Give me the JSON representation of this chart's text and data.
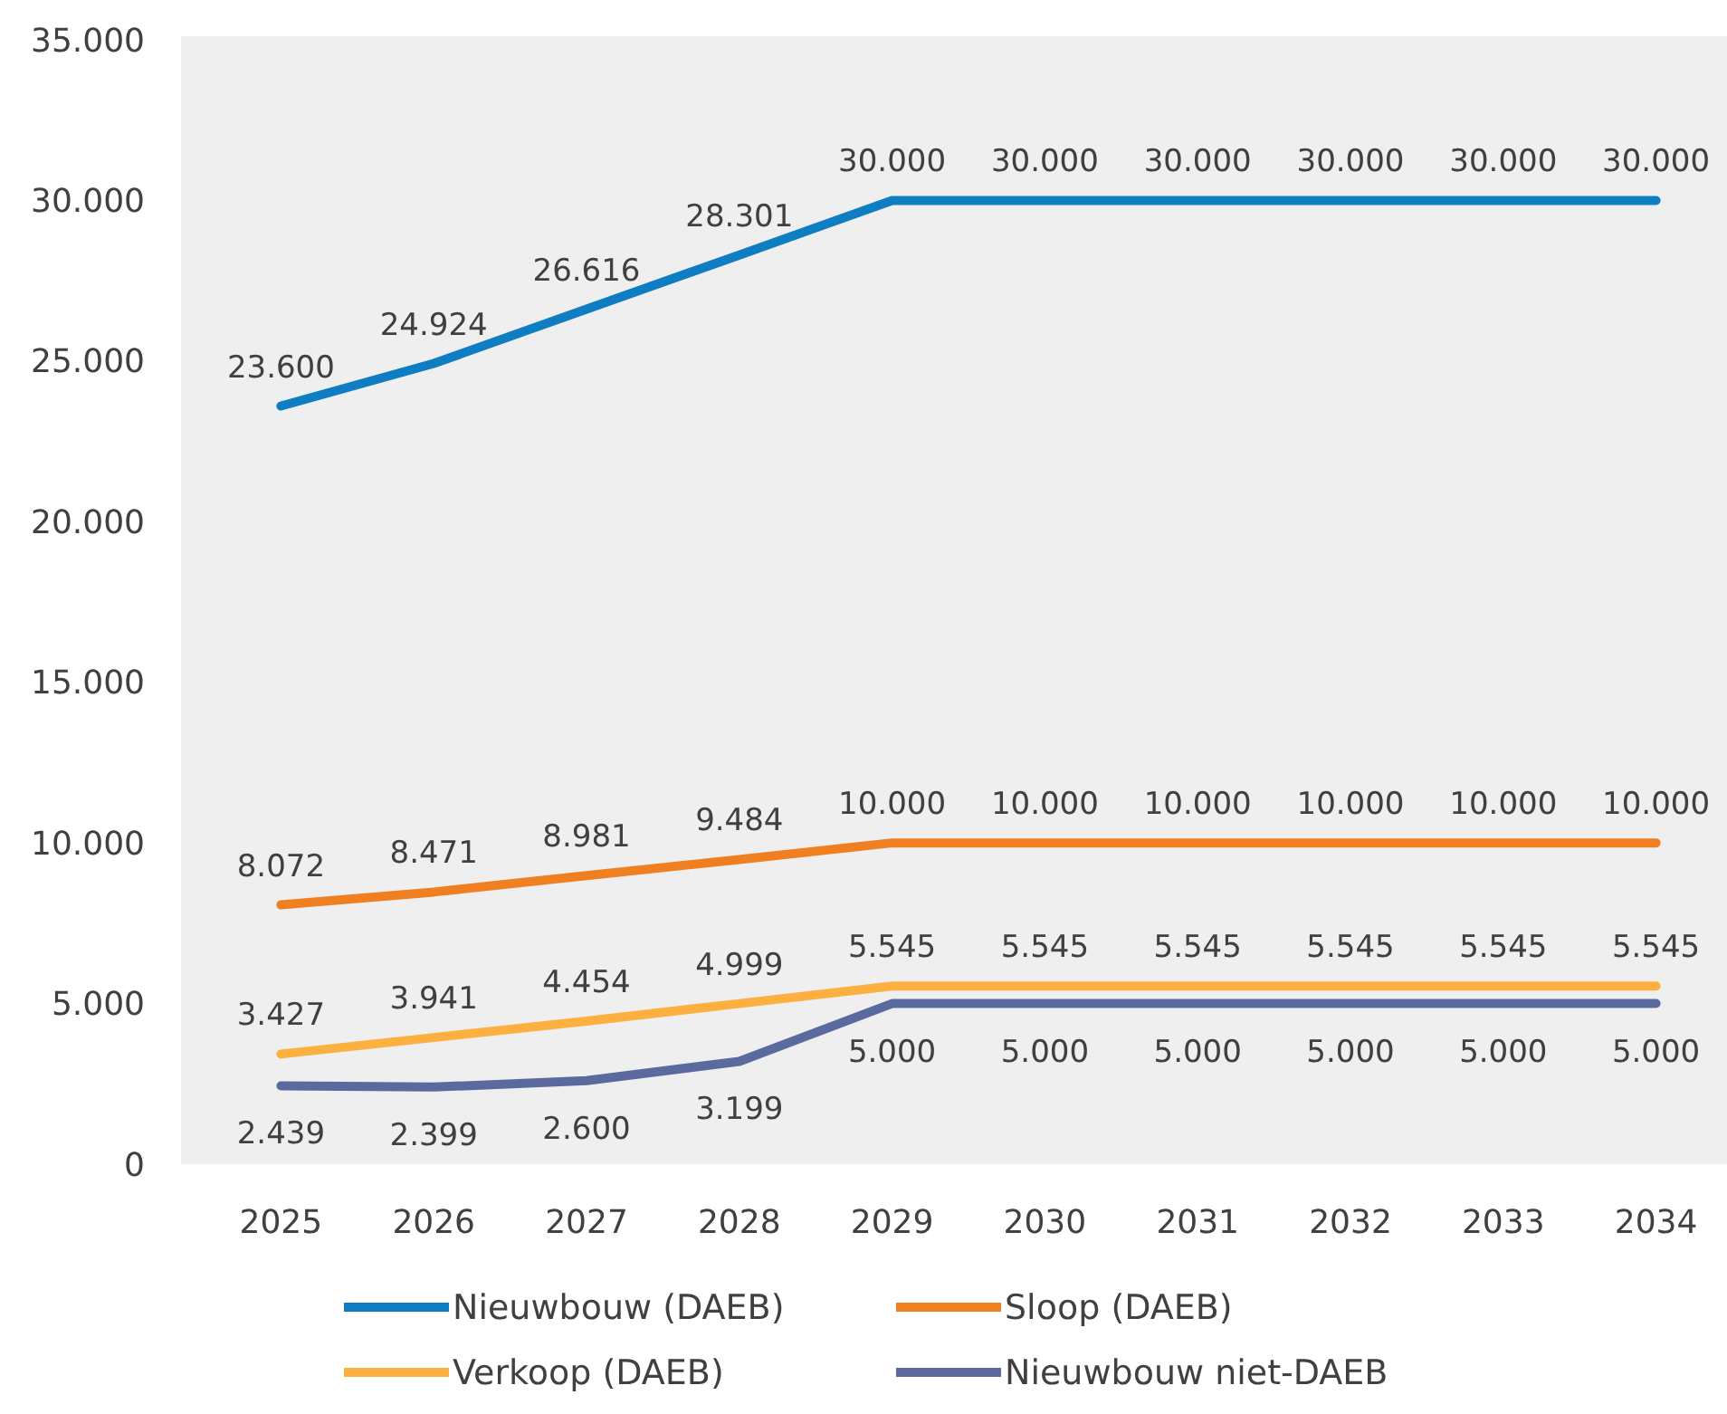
{
  "chart_data": {
    "type": "line",
    "categories": [
      "2025",
      "2026",
      "2027",
      "2028",
      "2029",
      "2030",
      "2031",
      "2032",
      "2033",
      "2034"
    ],
    "ylim": [
      0,
      35000
    ],
    "yticks": [
      {
        "value": 0,
        "label": "0"
      },
      {
        "value": 5000,
        "label": "5.000"
      },
      {
        "value": 10000,
        "label": "10.000"
      },
      {
        "value": 15000,
        "label": "15.000"
      },
      {
        "value": 20000,
        "label": "20.000"
      },
      {
        "value": 25000,
        "label": "25.000"
      },
      {
        "value": 30000,
        "label": "30.000"
      },
      {
        "value": 35000,
        "label": "35.000"
      }
    ],
    "grid": false,
    "legend": "bottom",
    "marker": "none",
    "line_style": "solid",
    "series": [
      {
        "name": "Nieuwbouw (DAEB)",
        "color": "#0f7dc2",
        "values": [
          23600,
          24924,
          26616,
          28301,
          30000,
          30000,
          30000,
          30000,
          30000,
          30000
        ],
        "value_labels": [
          "23.600",
          "24.924",
          "26.616",
          "28.301",
          "30.000",
          "30.000",
          "30.000",
          "30.000",
          "30.000",
          "30.000"
        ]
      },
      {
        "name": "Sloop (DAEB)",
        "color": "#f07f22",
        "values": [
          8072,
          8471,
          8981,
          9484,
          10000,
          10000,
          10000,
          10000,
          10000,
          10000
        ],
        "value_labels": [
          "8.072",
          "8.471",
          "8.981",
          "9.484",
          "10.000",
          "10.000",
          "10.000",
          "10.000",
          "10.000",
          "10.000"
        ]
      },
      {
        "name": "Verkoop (DAEB)",
        "color": "#fbb040",
        "values": [
          3427,
          3941,
          4454,
          4999,
          5545,
          5545,
          5545,
          5545,
          5545,
          5545
        ],
        "value_labels": [
          "3.427",
          "3.941",
          "4.454",
          "4.999",
          "5.545",
          "5.545",
          "5.545",
          "5.545",
          "5.545",
          "5.545"
        ]
      },
      {
        "name": "Nieuwbouw niet-DAEB",
        "color": "#5b6a9e",
        "values": [
          2439,
          2399,
          2600,
          3199,
          5000,
          5000,
          5000,
          5000,
          5000,
          5000
        ],
        "value_labels": [
          "2.439",
          "2.399",
          "2.600",
          "3.199",
          "5.000",
          "5.000",
          "5.000",
          "5.000",
          "5.000",
          "5.000"
        ]
      }
    ]
  }
}
